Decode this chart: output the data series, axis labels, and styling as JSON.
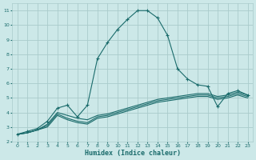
{
  "xlabel": "Humidex (Indice chaleur)",
  "ylabel": "",
  "bg_color": "#cce8e8",
  "grid_color": "#aacccc",
  "line_color": "#1a6b6b",
  "xlim": [
    -0.5,
    23.5
  ],
  "ylim": [
    2,
    11.5
  ],
  "xticks": [
    0,
    1,
    2,
    3,
    4,
    5,
    6,
    7,
    8,
    9,
    10,
    11,
    12,
    13,
    14,
    15,
    16,
    17,
    18,
    19,
    20,
    21,
    22,
    23
  ],
  "yticks": [
    2,
    3,
    4,
    5,
    6,
    7,
    8,
    9,
    10,
    11
  ],
  "series": [
    {
      "x": [
        0,
        1,
        2,
        3,
        4,
        5,
        6,
        7,
        8,
        9,
        10,
        11,
        12,
        13,
        14,
        15,
        16,
        17,
        18,
        19,
        20,
        21,
        22,
        23
      ],
      "y": [
        2.5,
        2.7,
        2.9,
        3.4,
        4.3,
        4.5,
        3.7,
        4.5,
        7.7,
        8.8,
        9.7,
        10.4,
        11.0,
        11.0,
        10.5,
        9.3,
        7.0,
        6.3,
        5.9,
        5.8,
        4.4,
        5.3,
        5.5,
        5.2
      ],
      "marker": true
    },
    {
      "x": [
        0,
        1,
        2,
        3,
        4,
        5,
        6,
        7,
        8,
        9,
        10,
        11,
        12,
        13,
        14,
        15,
        16,
        17,
        18,
        19,
        20,
        21,
        22,
        23
      ],
      "y": [
        2.5,
        2.6,
        2.8,
        3.2,
        4.0,
        3.8,
        3.6,
        3.5,
        3.8,
        3.9,
        4.1,
        4.3,
        4.5,
        4.7,
        4.9,
        5.0,
        5.1,
        5.2,
        5.3,
        5.3,
        5.1,
        5.2,
        5.4,
        5.2
      ],
      "marker": false
    },
    {
      "x": [
        0,
        1,
        2,
        3,
        4,
        5,
        6,
        7,
        8,
        9,
        10,
        11,
        12,
        13,
        14,
        15,
        16,
        17,
        18,
        19,
        20,
        21,
        22,
        23
      ],
      "y": [
        2.5,
        2.6,
        2.8,
        3.1,
        3.9,
        3.6,
        3.4,
        3.3,
        3.7,
        3.8,
        4.0,
        4.2,
        4.4,
        4.6,
        4.8,
        4.9,
        5.0,
        5.1,
        5.2,
        5.2,
        5.0,
        5.1,
        5.3,
        5.1
      ],
      "marker": false
    },
    {
      "x": [
        0,
        1,
        2,
        3,
        4,
        5,
        6,
        7,
        8,
        9,
        10,
        11,
        12,
        13,
        14,
        15,
        16,
        17,
        18,
        19,
        20,
        21,
        22,
        23
      ],
      "y": [
        2.5,
        2.6,
        2.8,
        3.0,
        3.8,
        3.5,
        3.3,
        3.2,
        3.6,
        3.7,
        3.9,
        4.1,
        4.3,
        4.5,
        4.7,
        4.8,
        4.9,
        5.0,
        5.1,
        5.1,
        4.9,
        5.0,
        5.2,
        5.0
      ],
      "marker": false
    }
  ]
}
